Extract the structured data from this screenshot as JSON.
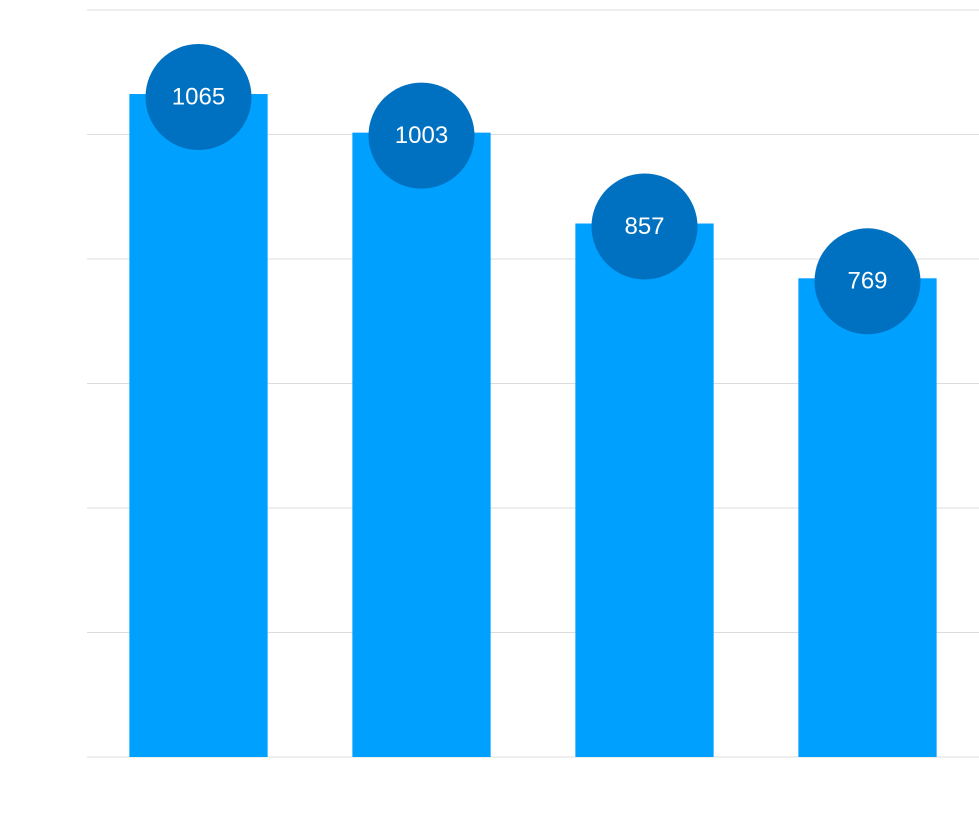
{
  "chart_data": {
    "type": "bar",
    "categories": [
      null,
      null,
      null,
      null
    ],
    "values": [
      1065,
      1003,
      857,
      769
    ],
    "color": "#00a0ff",
    "label_color": "#0071c1",
    "ylim": [
      0,
      1200
    ],
    "yticks": [
      0,
      200,
      400,
      600,
      800,
      1000,
      1200
    ],
    "grid": true
  }
}
